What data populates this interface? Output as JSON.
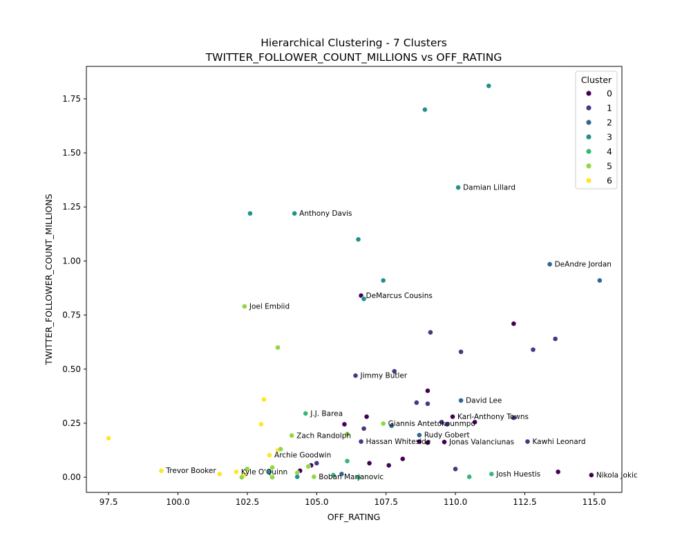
{
  "chart_data": {
    "type": "scatter",
    "title": "Hierarchical Clustering - 7 Clusters",
    "subtitle": "TWITTER_FOLLOWER_COUNT_MILLIONS vs OFF_RATING",
    "xlabel": "OFF_RATING",
    "ylabel": "TWITTER_FOLLOWER_COUNT_MILLIONS",
    "xlim": [
      96.7,
      116.0
    ],
    "ylim": [
      -0.07,
      1.9
    ],
    "xticks": [
      97.5,
      100.0,
      102.5,
      105.0,
      107.5,
      110.0,
      112.5,
      115.0
    ],
    "xtick_labels": [
      "97.5",
      "100.0",
      "102.5",
      "105.0",
      "107.5",
      "110.0",
      "112.5",
      "115.0"
    ],
    "yticks": [
      0.0,
      0.25,
      0.5,
      0.75,
      1.0,
      1.25,
      1.5,
      1.75
    ],
    "ytick_labels": [
      "0.00",
      "0.25",
      "0.50",
      "0.75",
      "1.00",
      "1.25",
      "1.50",
      "1.75"
    ],
    "grid": false,
    "legend": {
      "title": "Cluster",
      "placement": "top-right",
      "entries": [
        {
          "label": "0",
          "color": "#440154"
        },
        {
          "label": "1",
          "color": "#443983"
        },
        {
          "label": "2",
          "color": "#31688e"
        },
        {
          "label": "3",
          "color": "#21918c"
        },
        {
          "label": "4",
          "color": "#35b779"
        },
        {
          "label": "5",
          "color": "#90d743"
        },
        {
          "label": "6",
          "color": "#fde725"
        }
      ]
    },
    "points": [
      {
        "x": 111.2,
        "y": 1.81,
        "cluster": 3
      },
      {
        "x": 108.9,
        "y": 1.7,
        "cluster": 3
      },
      {
        "x": 110.1,
        "y": 1.34,
        "cluster": 3,
        "label": "Damian Lillard"
      },
      {
        "x": 102.6,
        "y": 1.22,
        "cluster": 3
      },
      {
        "x": 104.2,
        "y": 1.22,
        "cluster": 3,
        "label": "Anthony Davis"
      },
      {
        "x": 106.5,
        "y": 1.1,
        "cluster": 3
      },
      {
        "x": 113.4,
        "y": 0.985,
        "cluster": 2,
        "label": "DeAndre Jordan"
      },
      {
        "x": 115.2,
        "y": 0.91,
        "cluster": 2
      },
      {
        "x": 107.4,
        "y": 0.91,
        "cluster": 3
      },
      {
        "x": 106.6,
        "y": 0.84,
        "cluster": 0,
        "label": "DeMarcus Cousins"
      },
      {
        "x": 106.7,
        "y": 0.825,
        "cluster": 3
      },
      {
        "x": 102.4,
        "y": 0.79,
        "cluster": 5,
        "label": "Joel Embiid"
      },
      {
        "x": 112.1,
        "y": 0.71,
        "cluster": 0
      },
      {
        "x": 109.1,
        "y": 0.67,
        "cluster": 1
      },
      {
        "x": 113.6,
        "y": 0.64,
        "cluster": 1
      },
      {
        "x": 103.6,
        "y": 0.6,
        "cluster": 5
      },
      {
        "x": 112.8,
        "y": 0.59,
        "cluster": 1
      },
      {
        "x": 110.2,
        "y": 0.58,
        "cluster": 1
      },
      {
        "x": 107.8,
        "y": 0.49,
        "cluster": 1
      },
      {
        "x": 106.4,
        "y": 0.47,
        "cluster": 1,
        "label": "Jimmy Butler"
      },
      {
        "x": 109.0,
        "y": 0.4,
        "cluster": 0
      },
      {
        "x": 103.1,
        "y": 0.36,
        "cluster": 6
      },
      {
        "x": 110.2,
        "y": 0.355,
        "cluster": 2,
        "label": "David Lee"
      },
      {
        "x": 108.6,
        "y": 0.345,
        "cluster": 1
      },
      {
        "x": 109.0,
        "y": 0.34,
        "cluster": 1
      },
      {
        "x": 104.6,
        "y": 0.295,
        "cluster": 4,
        "label": "J.J. Barea"
      },
      {
        "x": 106.8,
        "y": 0.28,
        "cluster": 0
      },
      {
        "x": 109.9,
        "y": 0.28,
        "cluster": 0,
        "label": "Karl-Anthony Towns"
      },
      {
        "x": 112.1,
        "y": 0.275,
        "cluster": 1
      },
      {
        "x": 109.5,
        "y": 0.255,
        "cluster": 1
      },
      {
        "x": 110.7,
        "y": 0.255,
        "cluster": 0
      },
      {
        "x": 107.4,
        "y": 0.248,
        "cluster": 5,
        "label": "Giannis Antetokounmpo"
      },
      {
        "x": 103.0,
        "y": 0.245,
        "cluster": 6
      },
      {
        "x": 106.0,
        "y": 0.245,
        "cluster": 0
      },
      {
        "x": 109.7,
        "y": 0.245,
        "cluster": 1
      },
      {
        "x": 107.7,
        "y": 0.238,
        "cluster": 2
      },
      {
        "x": 106.7,
        "y": 0.225,
        "cluster": 1
      },
      {
        "x": 108.7,
        "y": 0.195,
        "cluster": 2,
        "label": "Rudy Gobert"
      },
      {
        "x": 104.1,
        "y": 0.193,
        "cluster": 5,
        "label": "Zach Randolph"
      },
      {
        "x": 106.1,
        "y": 0.2,
        "cluster": 5
      },
      {
        "x": 97.5,
        "y": 0.18,
        "cluster": 6
      },
      {
        "x": 106.6,
        "y": 0.165,
        "cluster": 1,
        "label": "Hassan Whiteside"
      },
      {
        "x": 108.7,
        "y": 0.165,
        "cluster": 0
      },
      {
        "x": 109.0,
        "y": 0.16,
        "cluster": 0
      },
      {
        "x": 109.6,
        "y": 0.163,
        "cluster": 0,
        "label": "Jonas Valanciunas"
      },
      {
        "x": 112.6,
        "y": 0.165,
        "cluster": 1,
        "label": "Kawhi Leonard"
      },
      {
        "x": 103.6,
        "y": 0.125,
        "cluster": 6
      },
      {
        "x": 103.7,
        "y": 0.13,
        "cluster": 5
      },
      {
        "x": 103.3,
        "y": 0.102,
        "cluster": 6,
        "label": "Archie Goodwin"
      },
      {
        "x": 108.1,
        "y": 0.085,
        "cluster": 0
      },
      {
        "x": 106.1,
        "y": 0.075,
        "cluster": 4
      },
      {
        "x": 106.9,
        "y": 0.065,
        "cluster": 0
      },
      {
        "x": 105.0,
        "y": 0.065,
        "cluster": 1
      },
      {
        "x": 107.6,
        "y": 0.055,
        "cluster": 0
      },
      {
        "x": 104.8,
        "y": 0.055,
        "cluster": 0
      },
      {
        "x": 104.7,
        "y": 0.05,
        "cluster": 5
      },
      {
        "x": 103.4,
        "y": 0.045,
        "cluster": 5
      },
      {
        "x": 110.0,
        "y": 0.038,
        "cluster": 1
      },
      {
        "x": 102.5,
        "y": 0.038,
        "cluster": 5
      },
      {
        "x": 99.4,
        "y": 0.03,
        "cluster": 6,
        "label": "Trevor Booker"
      },
      {
        "x": 104.4,
        "y": 0.03,
        "cluster": 0
      },
      {
        "x": 103.3,
        "y": 0.025,
        "cluster": 3
      },
      {
        "x": 102.1,
        "y": 0.025,
        "cluster": 6,
        "label": "Kyle O'Quinn"
      },
      {
        "x": 113.7,
        "y": 0.025,
        "cluster": 0
      },
      {
        "x": 104.3,
        "y": 0.02,
        "cluster": 5
      },
      {
        "x": 101.5,
        "y": 0.015,
        "cluster": 6
      },
      {
        "x": 111.3,
        "y": 0.015,
        "cluster": 4,
        "label": "Josh Huestis"
      },
      {
        "x": 105.9,
        "y": 0.015,
        "cluster": 2
      },
      {
        "x": 105.6,
        "y": 0.01,
        "cluster": 4
      },
      {
        "x": 114.9,
        "y": 0.01,
        "cluster": 0,
        "label": "Nikola Jokic"
      },
      {
        "x": 102.4,
        "y": 0.01,
        "cluster": 6
      },
      {
        "x": 104.3,
        "y": 0.002,
        "cluster": 3
      },
      {
        "x": 104.9,
        "y": 0.002,
        "cluster": 5,
        "label": "Boban Marjanovic"
      },
      {
        "x": 102.3,
        "y": 0.0,
        "cluster": 5
      },
      {
        "x": 103.4,
        "y": 0.0,
        "cluster": 5
      },
      {
        "x": 106.5,
        "y": 0.0,
        "cluster": 4
      },
      {
        "x": 110.5,
        "y": 0.002,
        "cluster": 4
      }
    ]
  }
}
